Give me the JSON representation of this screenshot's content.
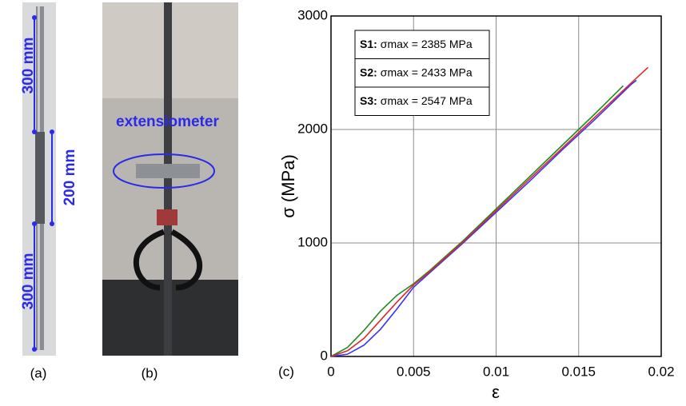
{
  "photos": {
    "a": {
      "label": "(a)",
      "dimensions": [
        "300 mm",
        "200 mm",
        "300 mm"
      ]
    },
    "b": {
      "label": "(b)",
      "annotation": "extensiometer"
    }
  },
  "chart_data": {
    "type": "line",
    "panel_label": "(c)",
    "xlabel": "ε",
    "ylabel": "σ (MPa)",
    "xlim": [
      0,
      0.02
    ],
    "xticks": [
      0,
      0.005,
      0.01,
      0.015,
      0.02
    ],
    "ylim": [
      0,
      3000
    ],
    "yticks": [
      0,
      1000,
      2000,
      3000
    ],
    "grid": true,
    "series": [
      {
        "name": "S1:",
        "legend_label": "σmax = 2385 MPa",
        "color": "#1f8a1f",
        "x": [
          0,
          0.001,
          0.002,
          0.003,
          0.004,
          0.005,
          0.006,
          0.008,
          0.01,
          0.012,
          0.014,
          0.016,
          0.0177
        ],
        "values": [
          0,
          80,
          230,
          400,
          540,
          640,
          760,
          1020,
          1300,
          1580,
          1860,
          2140,
          2385
        ]
      },
      {
        "name": "S2:",
        "legend_label": "σmax = 2433 MPa",
        "color": "#3434ff",
        "x": [
          0,
          0.001,
          0.002,
          0.003,
          0.004,
          0.005,
          0.006,
          0.008,
          0.01,
          0.012,
          0.014,
          0.016,
          0.0182,
          0.0185
        ],
        "values": [
          0,
          20,
          100,
          240,
          420,
          610,
          740,
          1000,
          1270,
          1540,
          1820,
          2090,
          2400,
          2433
        ]
      },
      {
        "name": "S3:",
        "legend_label": "σmax = 2547 MPa",
        "color": "#e02828",
        "x": [
          0,
          0.001,
          0.002,
          0.003,
          0.004,
          0.005,
          0.006,
          0.008,
          0.01,
          0.012,
          0.014,
          0.016,
          0.018,
          0.0192
        ],
        "values": [
          0,
          50,
          160,
          320,
          480,
          630,
          750,
          1010,
          1285,
          1560,
          1835,
          2110,
          2385,
          2547
        ]
      }
    ]
  }
}
